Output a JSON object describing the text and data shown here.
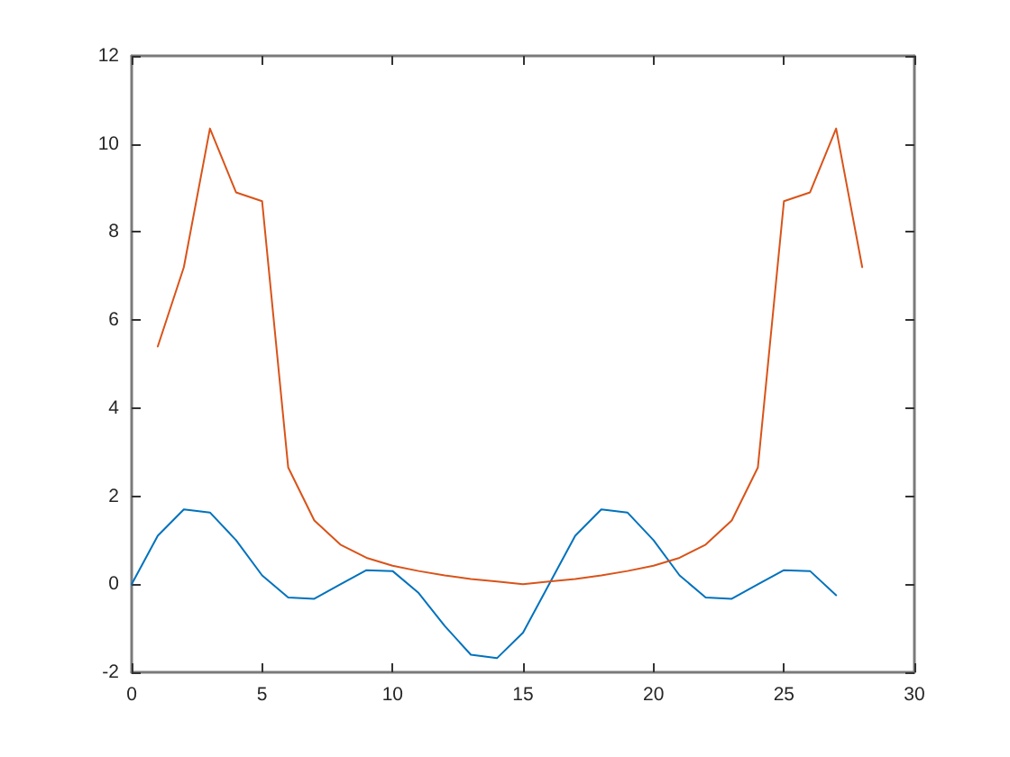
{
  "chart_data": {
    "type": "line",
    "xlim": [
      0,
      30
    ],
    "xticks": [
      0,
      5,
      10,
      15,
      20,
      25,
      30
    ],
    "ylim": [
      -2,
      12
    ],
    "yticks": [
      -2,
      0,
      2,
      4,
      6,
      8,
      10,
      12
    ],
    "grid": false,
    "marker": "none",
    "line_style": "solid",
    "series": [
      {
        "color": "#0072bd",
        "x": [
          0,
          1,
          2,
          3,
          4,
          5,
          6,
          7,
          8,
          9,
          10,
          11,
          12,
          13,
          14,
          15,
          16,
          17,
          18,
          19,
          20,
          21,
          22,
          23,
          24,
          25,
          26,
          27
        ],
        "values": [
          0,
          1.1,
          1.7,
          1.63,
          1.0,
          0.2,
          -0.3,
          -0.33,
          0.0,
          0.32,
          0.3,
          -0.2,
          -0.95,
          -1.6,
          -1.68,
          -1.1,
          0.0,
          1.1,
          1.7,
          1.63,
          1.0,
          0.2,
          -0.3,
          -0.33,
          0.0,
          0.32,
          0.3,
          -0.25
        ]
      },
      {
        "color": "#d95319",
        "x": [
          1,
          2,
          3,
          4,
          5,
          6,
          7,
          8,
          9,
          10,
          11,
          12,
          13,
          14,
          15,
          16,
          17,
          18,
          19,
          20,
          21,
          22,
          23,
          24,
          25,
          26,
          27,
          28
        ],
        "values": [
          5.4,
          7.2,
          10.35,
          8.9,
          8.7,
          2.65,
          1.45,
          0.9,
          0.6,
          0.42,
          0.3,
          0.2,
          0.12,
          0.06,
          0.0,
          0.06,
          0.12,
          0.2,
          0.3,
          0.42,
          0.6,
          0.9,
          1.45,
          2.65,
          8.7,
          8.9,
          10.35,
          7.2
        ]
      }
    ]
  }
}
